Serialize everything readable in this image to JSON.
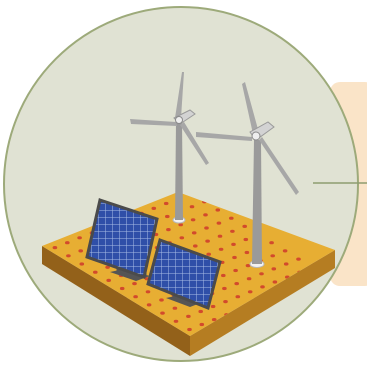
{
  "colors": {
    "page_background": "#ffffff",
    "circle_fill": "#e0e2d3",
    "circle_stroke": "#9daa7a",
    "callout_panel": "#fae4c8",
    "connector_line": "#8e9c70",
    "ground_top": "#e7ae33",
    "ground_left": "#93611a",
    "ground_right": "#b57d22",
    "ground_dots": "#d24a2c",
    "solar_cell": "#2f4fa8",
    "solar_grid": "#a9bde6",
    "solar_frame": "#4b4b4b",
    "turbine_tower": "#9a9a9a",
    "turbine_blade": "#a7a7a7",
    "turbine_nacelle": "#d3d3d3"
  },
  "icons": {
    "scene": "renewable-energy-site-icon",
    "turbines": "wind-turbine-icon",
    "panels": "solar-panel-icon"
  }
}
